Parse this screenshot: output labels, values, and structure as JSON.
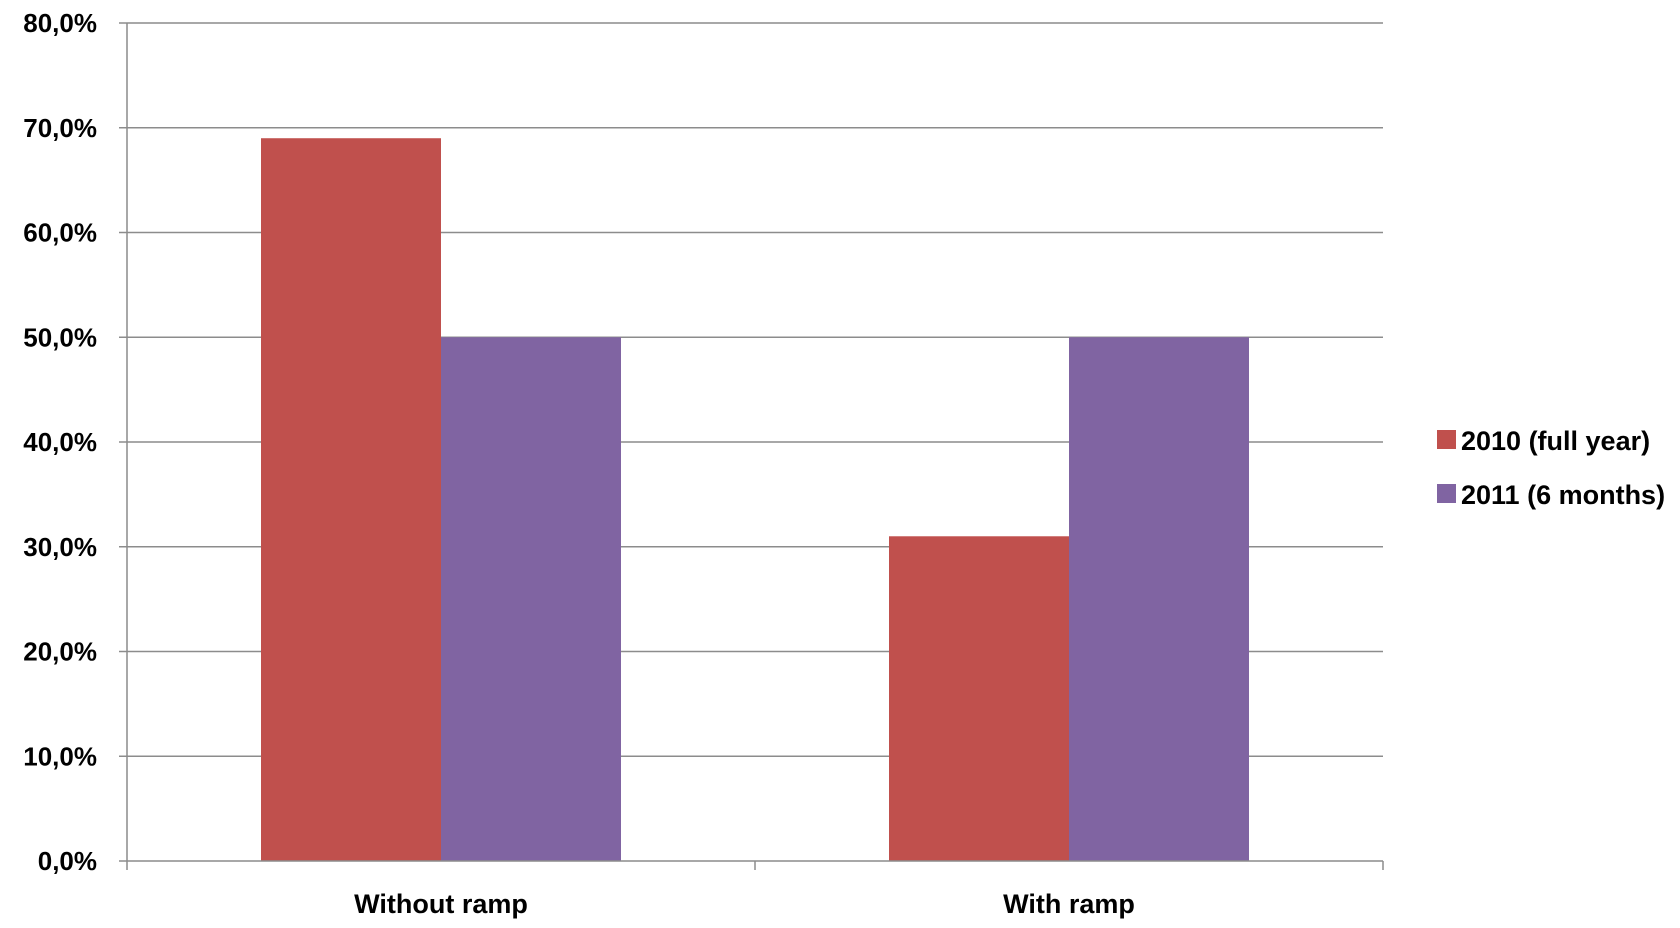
{
  "chart_data": {
    "type": "bar",
    "title": "",
    "xlabel": "",
    "ylabel": "",
    "categories": [
      "Without ramp",
      "With ramp"
    ],
    "series": [
      {
        "name": "2010 (full year)",
        "values": [
          69.0,
          31.0
        ],
        "color": "#c0504d"
      },
      {
        "name": "2011 (6 months)",
        "values": [
          50.0,
          50.0
        ],
        "color": "#8064a2"
      }
    ],
    "ylim": [
      0,
      80
    ],
    "y_ticks": [
      0,
      10,
      20,
      30,
      40,
      50,
      60,
      70,
      80
    ],
    "y_tick_labels": [
      "0,0%",
      "10,0%",
      "20,0%",
      "30,0%",
      "40,0%",
      "50,0%",
      "60,0%",
      "70,0%",
      "80,0%"
    ],
    "grid": true,
    "legend_position": "right"
  }
}
